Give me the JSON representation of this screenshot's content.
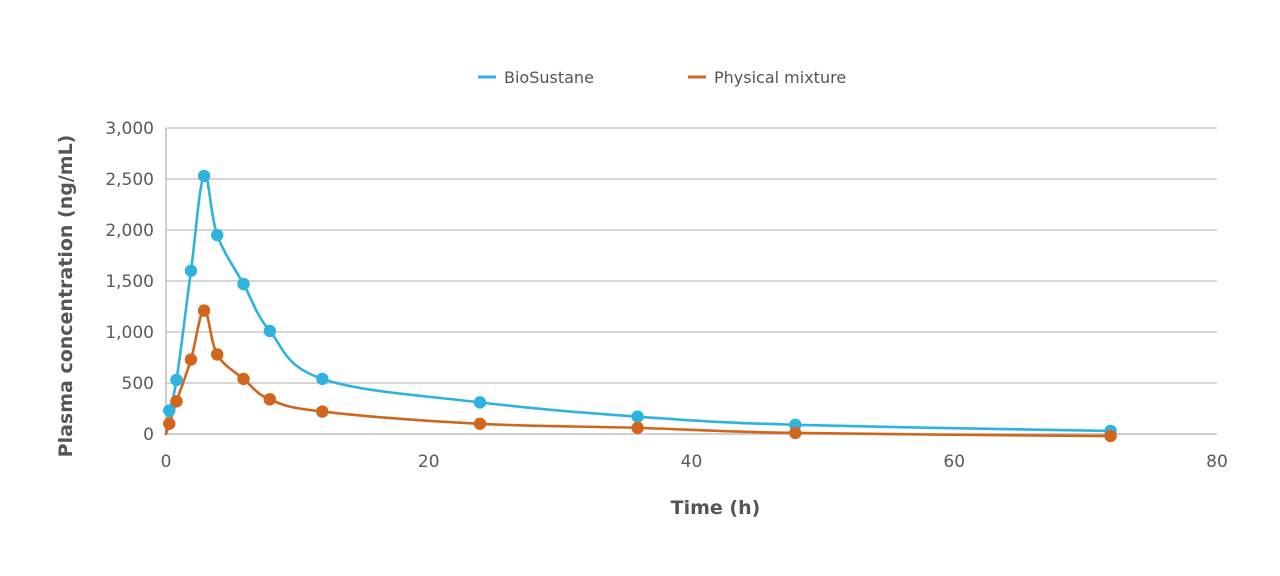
{
  "chart_data": {
    "type": "line",
    "title": "",
    "xlabel": "Time (h)",
    "ylabel": "Plasma concentration (ng/mL)",
    "xlim": [
      0,
      80
    ],
    "ylim": [
      0,
      3000
    ],
    "x_ticks": [
      0,
      20,
      40,
      60,
      80
    ],
    "x_tick_labels": [
      "0",
      "20",
      "40",
      "60",
      "80"
    ],
    "y_ticks": [
      0,
      500,
      1000,
      1500,
      2000,
      2500,
      3000
    ],
    "y_tick_labels": [
      "0",
      "500",
      "1,000",
      "1,500",
      "2,000",
      "2,500",
      "3,000"
    ],
    "grid": true,
    "legend_position": "top-center",
    "series": [
      {
        "name": "BioSustane",
        "color": "#2eb3de",
        "x": [
          0.25,
          0.8,
          1.9,
          2.9,
          3.9,
          5.9,
          7.9,
          11.9,
          23.9,
          35.9,
          47.9,
          71.9
        ],
        "y": [
          230,
          530,
          1600,
          2530,
          1950,
          1470,
          1010,
          540,
          310,
          170,
          90,
          30
        ]
      },
      {
        "name": "Physical mixture",
        "color": "#d0661e",
        "x": [
          0.25,
          0.8,
          1.9,
          2.9,
          3.9,
          5.9,
          7.9,
          11.9,
          23.9,
          35.9,
          47.9,
          71.9
        ],
        "y": [
          100,
          320,
          730,
          1210,
          780,
          540,
          340,
          220,
          100,
          60,
          10,
          -20
        ]
      }
    ]
  }
}
